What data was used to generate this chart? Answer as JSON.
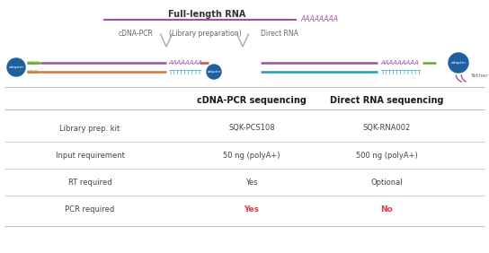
{
  "title_full_rna": "Full-length RNA",
  "title_cdna_pcr": "cDNA-PCR",
  "title_lib_prep": "(Library preparation)",
  "title_direct_rna": "Direct RNA",
  "col_headers": [
    "",
    "cDNA-PCR sequencing",
    "Direct RNA sequencing"
  ],
  "rows": [
    [
      "Library prep. kit",
      "SQK-PCS108",
      "SQK-RNA002"
    ],
    [
      "Input requirement",
      "50 ng (polyA+)",
      "500 ng (polyA+)"
    ],
    [
      "RT required",
      "Yes",
      "Optional"
    ],
    [
      "PCR required",
      "Yes",
      "No"
    ]
  ],
  "pcr_red_color": "#e63946",
  "header_color": "#1a1a1a",
  "cell_text_color": "#444444",
  "label_color": "#666666",
  "line_color": "#bbbbbb",
  "bg_color": "#ffffff",
  "purple_color": "#a050a0",
  "teal_color": "#20a0b8",
  "green_color": "#60aa30",
  "red_color": "#e05030",
  "orange_color": "#e07030",
  "circle_color": "#2060a0"
}
